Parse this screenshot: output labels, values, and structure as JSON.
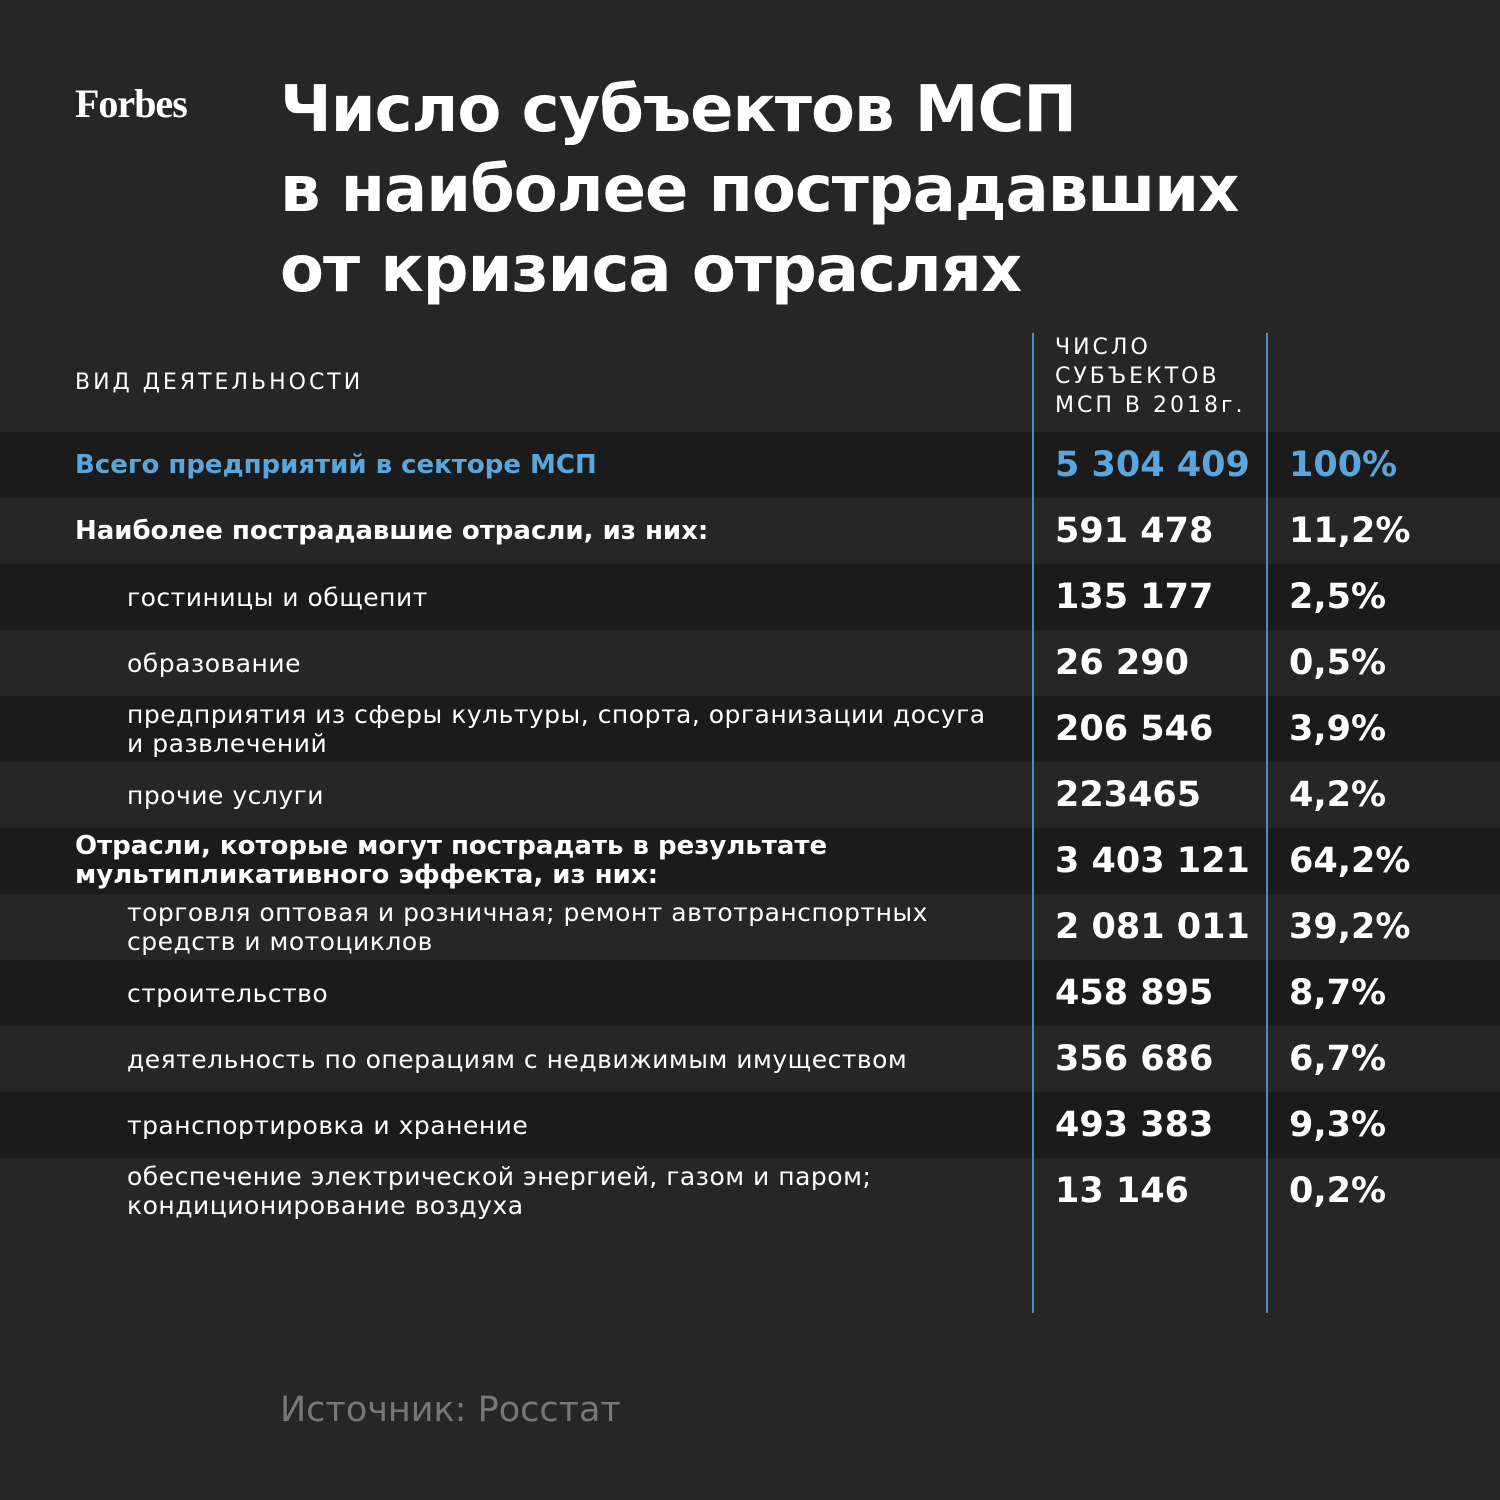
{
  "header": {
    "logo": "Forbes",
    "title": [
      "Число субъектов МСП",
      "в наиболее пострадавших",
      "от кризиса отраслях"
    ]
  },
  "table": {
    "columns": {
      "activity": "ВИД ДЕЯТЕЛЬНОСТИ",
      "count": [
        "ЧИСЛО",
        "СУБЪЕКТОВ",
        "МСП В 2018г."
      ]
    },
    "total": {
      "label": "Всего предприятий в секторе МСП",
      "count": "5 304 409",
      "share": "100%"
    },
    "groups": [
      {
        "label": "Наиболее пострадавшие отрасли, из них:",
        "count": "591 478",
        "share": "11,2%",
        "items": [
          {
            "label": "гостиницы и общепит",
            "count": "135 177",
            "share": "2,5%"
          },
          {
            "label": "образование",
            "count": "26 290",
            "share": "0,5%"
          },
          {
            "label": "предприятия из сферы культуры, спорта, организации досуга и развлечений",
            "count": "206 546",
            "share": "3,9%"
          },
          {
            "label": "прочие услуги",
            "count": "223465",
            "share": "4,2%"
          }
        ]
      },
      {
        "label": "Отрасли, которые могут пострадать в результате мультипликативного эффекта, из них:",
        "count": "3 403 121",
        "share": "64,2%",
        "items": [
          {
            "label": "торговля оптовая и розничная; ремонт автотранспортных средств и мотоциклов",
            "count": "2 081 011",
            "share": "39,2%"
          },
          {
            "label": "строительство",
            "count": "458 895",
            "share": "8,7%"
          },
          {
            "label": "деятельность по операциям с недвижимым имуществом",
            "count": "356 686",
            "share": "6,7%"
          },
          {
            "label": "транспортировка и хранение",
            "count": "493 383",
            "share": "9,3%"
          },
          {
            "label": "обеспечение электрической энергией, газом и паром; кондиционирование воздуха",
            "count": "13 146",
            "share": "0,2%"
          }
        ]
      }
    ]
  },
  "footer": {
    "source": "Источник: Росстат"
  }
}
